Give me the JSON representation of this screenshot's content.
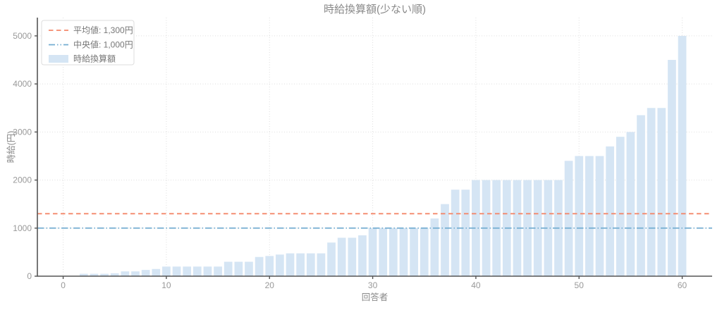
{
  "chart_data": {
    "type": "bar",
    "title": "時給換算額(少ない順)",
    "xlabel": "回答者",
    "ylabel": "時給(円)",
    "x": [
      2,
      3,
      4,
      5,
      6,
      7,
      8,
      9,
      10,
      11,
      12,
      13,
      14,
      15,
      16,
      17,
      18,
      19,
      20,
      21,
      22,
      23,
      24,
      25,
      26,
      27,
      28,
      29,
      30,
      31,
      32,
      33,
      34,
      35,
      36,
      37,
      38,
      39,
      40,
      41,
      42,
      43,
      44,
      45,
      46,
      47,
      48,
      49,
      50,
      51,
      52,
      53,
      54,
      55,
      56,
      57,
      58,
      59,
      60
    ],
    "values": [
      50,
      50,
      50,
      60,
      100,
      100,
      130,
      150,
      200,
      200,
      200,
      200,
      200,
      200,
      300,
      300,
      300,
      400,
      420,
      450,
      475,
      475,
      475,
      475,
      700,
      800,
      800,
      850,
      1000,
      1000,
      1000,
      1000,
      1000,
      1000,
      1200,
      1500,
      1800,
      1800,
      2000,
      2000,
      2000,
      2000,
      2000,
      2000,
      2000,
      2000,
      2000,
      2400,
      2500,
      2500,
      2500,
      2700,
      2900,
      3000,
      3350,
      3500,
      3500,
      4500,
      5000
    ],
    "xticks": [
      "0",
      "10",
      "20",
      "30",
      "40",
      "50",
      "60"
    ],
    "xtick_values": [
      0,
      10,
      20,
      30,
      40,
      50,
      60
    ],
    "yticks": [
      "0",
      "1000",
      "2000",
      "3000",
      "4000",
      "5000"
    ],
    "ytick_values": [
      0,
      1000,
      2000,
      3000,
      4000,
      5000
    ],
    "xlim": [
      -2.5,
      62.9
    ],
    "ylim": [
      0,
      5380
    ],
    "grid": true,
    "legend_position": "upper-left",
    "reference_lines": [
      {
        "name": "mean",
        "value": 1300,
        "label": "平均値: 1,300円",
        "color": "#f4876a",
        "style": "dashed"
      },
      {
        "name": "median",
        "value": 1000,
        "label": "中央値: 1,000円",
        "color": "#74add1",
        "style": "dashdot"
      }
    ],
    "bar_series_label": "時給換算額",
    "colors": {
      "bar_fill": "#d5e5f4",
      "mean_line": "#f4876a",
      "median_line": "#74add1",
      "grid": "#dedede",
      "spine": "#555555",
      "tick_text": "#999999",
      "title_text": "#8a8a8a",
      "legend_border": "#dddddd"
    }
  }
}
